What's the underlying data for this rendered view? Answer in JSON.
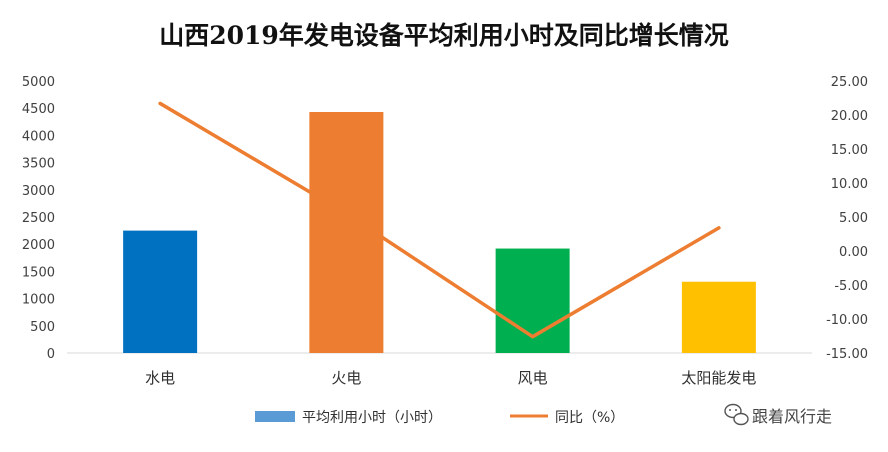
{
  "chart_data": {
    "type": "bar",
    "title": "山西2019年发电设备平均利用小时及同比增长情况",
    "categories": [
      "水电",
      "火电",
      "风电",
      "太阳能发电"
    ],
    "bar_colors": [
      "#0070C0",
      "#ED7D31",
      "#00B050",
      "#FFC000"
    ],
    "series": [
      {
        "name": "平均利用小时（小时）",
        "type": "bar",
        "axis": "left",
        "legend_color": "#5B9BD5",
        "values": [
          2250,
          4430,
          1920,
          1310
        ]
      },
      {
        "name": "同比（%）",
        "type": "line",
        "axis": "right",
        "color": "#ED7D31",
        "values": [
          21.7,
          5.5,
          -12.6,
          3.4
        ]
      }
    ],
    "y_left": {
      "min": 0,
      "max": 5000,
      "ticks": [
        "0",
        "500",
        "1000",
        "1500",
        "2000",
        "2500",
        "3000",
        "3500",
        "4000",
        "4500",
        "5000"
      ]
    },
    "y_right": {
      "min": -15,
      "max": 25,
      "ticks": [
        "-15.00",
        "-10.00",
        "-5.00",
        "0.00",
        "5.00",
        "10.00",
        "15.00",
        "20.00",
        "25.00"
      ]
    },
    "grid": false,
    "legend_position": "bottom"
  },
  "watermark": {
    "text": "跟着风行走",
    "icon": "wechat-icon"
  }
}
